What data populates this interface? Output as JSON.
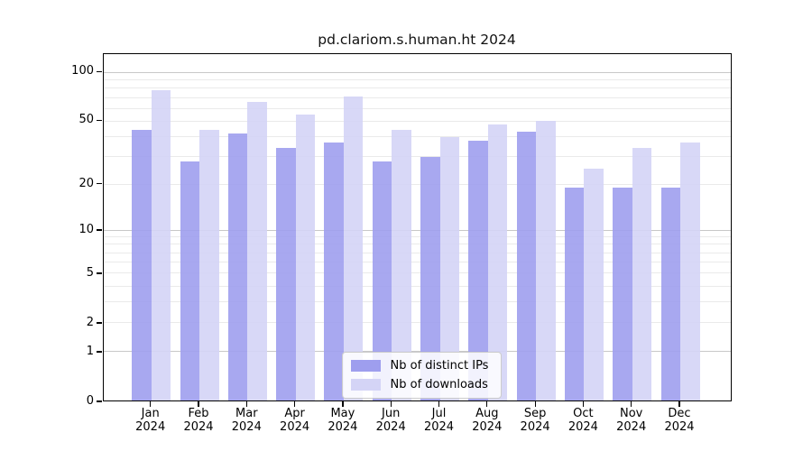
{
  "chart_data": {
    "type": "bar",
    "title": "pd.clariom.s.human.ht 2024",
    "categories": [
      "Jan",
      "Feb",
      "Mar",
      "Apr",
      "May",
      "Jun",
      "Jul",
      "Aug",
      "Sep",
      "Oct",
      "Nov",
      "Dec"
    ],
    "category_year": "2024",
    "series": [
      {
        "name": "Nb of distinct IPs",
        "color": "#9e9eee",
        "values": [
          44,
          28,
          42,
          34,
          37,
          28,
          30,
          38,
          43,
          19,
          19,
          19
        ]
      },
      {
        "name": "Nb of downloads",
        "color": "#d4d4f6",
        "values": [
          78,
          44,
          66,
          55,
          71,
          44,
          40,
          48,
          50,
          25,
          34,
          37
        ]
      }
    ],
    "y_scale": "log1p",
    "y_ticks": [
      0,
      1,
      2,
      5,
      10,
      20,
      50,
      100
    ],
    "y_max": 130,
    "gridlines": {
      "major": [
        1,
        10,
        100
      ],
      "minor": [
        2,
        3,
        4,
        5,
        6,
        7,
        8,
        9,
        20,
        30,
        40,
        50,
        60,
        70,
        80,
        90
      ],
      "major_color": "#c8c8c8",
      "minor_color": "#eaeaea"
    },
    "legend_position": "lower center",
    "axis_color": "#000000",
    "background_color": "#ffffff"
  }
}
